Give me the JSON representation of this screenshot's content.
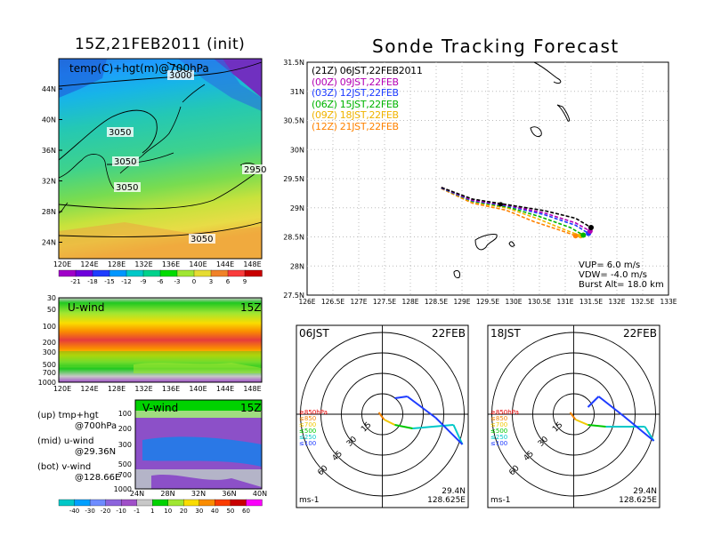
{
  "titles": {
    "left": "15Z,21FEB2011 (init)",
    "right": "Sonde Tracking Forecast"
  },
  "map_panel": {
    "label": "temp(C)+hgt(m)@700hPa",
    "contours": [
      "3000",
      "3050",
      "3050",
      "3050",
      "2950",
      "3050"
    ],
    "lat_ticks": [
      "44N",
      "40N",
      "36N",
      "32N",
      "28N",
      "24N"
    ],
    "lon_ticks": [
      "120E",
      "124E",
      "128E",
      "132E",
      "136E",
      "140E",
      "144E",
      "148E"
    ],
    "colorbar_ticks": [
      "-21",
      "-18",
      "-15",
      "-12",
      "-9",
      "-6",
      "-3",
      "0",
      "3",
      "6",
      "9"
    ],
    "colorbar_colors": [
      "#a000c8",
      "#6e00dc",
      "#1e3cff",
      "#0096ff",
      "#00c8c8",
      "#00d28c",
      "#00dc00",
      "#a0e632",
      "#e6dc32",
      "#f08228",
      "#fa3c3c",
      "#c80000"
    ]
  },
  "u_panel": {
    "label": "U-wind",
    "time": "15Z",
    "levels": [
      "30",
      "50",
      "100",
      "200",
      "300",
      "500",
      "700",
      "1000"
    ],
    "lon_ticks": [
      "120E",
      "124E",
      "128E",
      "132E",
      "136E",
      "140E",
      "144E",
      "148E"
    ]
  },
  "v_panel": {
    "label": "V-wind",
    "time": "15Z",
    "levels": [
      "100",
      "200",
      "300",
      "500",
      "700",
      "1000"
    ],
    "lat_ticks": [
      "24N",
      "28N",
      "32N",
      "36N",
      "40N"
    ]
  },
  "legend_notes": [
    {
      "tag": "(up)",
      "line1": "tmp+hgt",
      "line2": "@700hPa"
    },
    {
      "tag": "(mid)",
      "line1": "u-wind",
      "line2": "@29.36N"
    },
    {
      "tag": "(bot)",
      "line1": "v-wind",
      "line2": "@128.66E"
    }
  ],
  "wind_colorbar": {
    "ticks": [
      "-40",
      "-30",
      "-20",
      "-10",
      "-1",
      "1",
      "10",
      "20",
      "30",
      "40",
      "50",
      "60"
    ],
    "colors": [
      "#00c8c8",
      "#00a0ff",
      "#6e8cff",
      "#8c64dc",
      "#a050c8",
      "#c8c8c8",
      "#00d200",
      "#a0e632",
      "#fadc00",
      "#fa8c00",
      "#fa3c00",
      "#c80000",
      "#fa00fa"
    ]
  },
  "track_panel": {
    "legend": [
      {
        "text": "(21Z) 06JST,22FEB2011",
        "color": "#000000"
      },
      {
        "text": "(00Z) 09JST,22FEB",
        "color": "#b400b4"
      },
      {
        "text": "(03Z) 12JST,22FEB",
        "color": "#1e3cff"
      },
      {
        "text": "(06Z) 15JST,22FEB",
        "color": "#00b400"
      },
      {
        "text": "(09Z) 18JST,22FEB",
        "color": "#f0b400"
      },
      {
        "text": "(12Z) 21JST,22FEB",
        "color": "#ff8200"
      }
    ],
    "info": [
      "VUP= 6.0 m/s",
      "VDW= -4.0 m/s",
      "Burst Alt= 18.0 km"
    ],
    "lat_ticks": [
      "31.5N",
      "31N",
      "30.5N",
      "30N",
      "29.5N",
      "29N",
      "28.5N",
      "28N",
      "27.5N"
    ],
    "lon_ticks": [
      "126E",
      "126.5E",
      "127E",
      "127.5E",
      "128E",
      "128.5E",
      "129E",
      "129.5E",
      "130E",
      "130.5E",
      "131E",
      "131.5E",
      "132E",
      "132.5E",
      "133E"
    ]
  },
  "hodographs": [
    {
      "time": "06JST",
      "date": "22FEB",
      "lat": "29.4N",
      "lon": "128.625E",
      "unit": "ms-1",
      "rings": [
        "15",
        "30",
        "45",
        "60"
      ],
      "levels": [
        {
          "t": "≥850hPa",
          "c": "#e60000"
        },
        {
          "t": "≤850",
          "c": "#f08200"
        },
        {
          "t": "≤700",
          "c": "#f0c800"
        },
        {
          "t": "≤500",
          "c": "#00c800"
        },
        {
          "t": "≤250",
          "c": "#00c8c8"
        },
        {
          "t": "≤100",
          "c": "#1e3cff"
        }
      ]
    },
    {
      "time": "18JST",
      "date": "22FEB",
      "lat": "29.4N",
      "lon": "128.625E",
      "unit": "ms-1",
      "rings": [
        "15",
        "30",
        "45",
        "60"
      ],
      "levels": [
        {
          "t": "≥850hPa",
          "c": "#e60000"
        },
        {
          "t": "≤850",
          "c": "#f08200"
        },
        {
          "t": "≤700",
          "c": "#f0c800"
        },
        {
          "t": "≤500",
          "c": "#00c800"
        },
        {
          "t": "≤250",
          "c": "#00c8c8"
        },
        {
          "t": "≤100",
          "c": "#1e3cff"
        }
      ]
    }
  ],
  "chart_data": {
    "type": "line",
    "title": "Sonde Tracking Forecast",
    "xlabel": "",
    "ylabel": "",
    "xlim": [
      126,
      133
    ],
    "ylim": [
      27.5,
      31.5
    ],
    "series": [
      {
        "name": "(21Z) 06JST,22FEB2011",
        "color": "#000000",
        "x": [
          128.6,
          129.2,
          129.9,
          130.6,
          131.2,
          131.5
        ],
        "y": [
          29.35,
          29.15,
          29.05,
          28.95,
          28.82,
          28.66
        ]
      },
      {
        "name": "(00Z) 09JST,22FEB",
        "color": "#b400b4",
        "x": [
          128.6,
          129.2,
          129.9,
          130.6,
          131.2,
          131.48
        ],
        "y": [
          29.35,
          29.13,
          29.04,
          28.91,
          28.74,
          28.6
        ]
      },
      {
        "name": "(03Z) 12JST,22FEB",
        "color": "#1e3cff",
        "x": [
          128.6,
          129.2,
          129.9,
          130.6,
          131.2,
          131.45
        ],
        "y": [
          29.34,
          29.12,
          29.03,
          28.88,
          28.7,
          28.56
        ]
      },
      {
        "name": "(06Z) 15JST,22FEB",
        "color": "#00b400",
        "x": [
          128.6,
          129.2,
          129.9,
          130.5,
          131.1,
          131.35
        ],
        "y": [
          29.34,
          29.11,
          29.01,
          28.85,
          28.66,
          28.53
        ]
      },
      {
        "name": "(09Z) 18JST,22FEB",
        "color": "#f0b400",
        "x": [
          128.6,
          129.2,
          129.9,
          130.5,
          131.0,
          131.3
        ],
        "y": [
          29.34,
          29.1,
          28.99,
          28.8,
          28.62,
          28.52
        ]
      },
      {
        "name": "(12Z) 21JST,22FEB",
        "color": "#ff8200",
        "x": [
          128.6,
          129.2,
          129.85,
          130.4,
          130.95,
          131.2
        ],
        "y": [
          29.33,
          29.08,
          28.96,
          28.76,
          28.6,
          28.52
        ]
      }
    ]
  }
}
